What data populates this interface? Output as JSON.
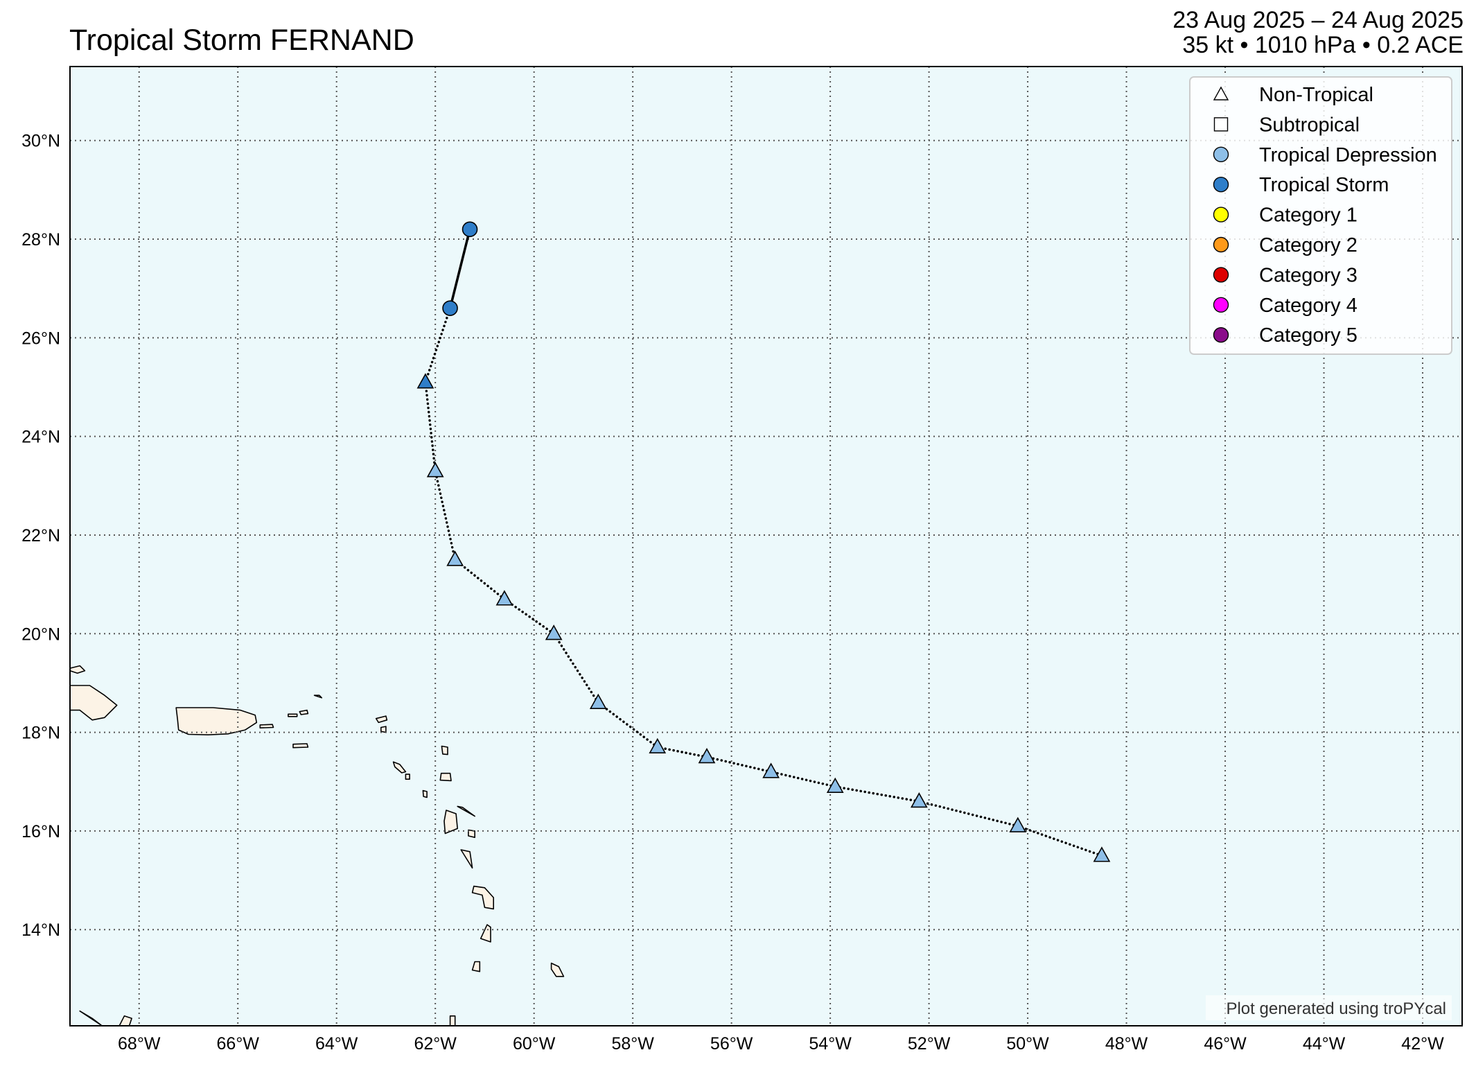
{
  "title": "Tropical Storm FERNAND",
  "date_range": "23 Aug 2025 – 24 Aug 2025",
  "stats_line": "35 kt • 1010 hPa • 0.2 ACE",
  "credit": "Plot generated using troPYcal",
  "colors": {
    "ocean": "#ecf9fb",
    "land": "#fcf3e6",
    "grid": "#555555",
    "Tropical Depression": "#8ebfe8",
    "Tropical Storm": "#2f7ec9",
    "Category 1": "#ffff00",
    "Category 2": "#ff9a1a",
    "Category 3": "#dd0000",
    "Category 4": "#ff00ff",
    "Category 5": "#8a0b8a"
  },
  "legend": [
    {
      "label": "Non-Tropical",
      "marker": "triangle",
      "color": "#ffffff"
    },
    {
      "label": "Subtropical",
      "marker": "square",
      "color": "#ffffff"
    },
    {
      "label": "Tropical Depression",
      "marker": "circle",
      "color": "#8ebfe8"
    },
    {
      "label": "Tropical Storm",
      "marker": "circle",
      "color": "#2f7ec9"
    },
    {
      "label": "Category 1",
      "marker": "circle",
      "color": "#ffff00"
    },
    {
      "label": "Category 2",
      "marker": "circle",
      "color": "#ff9a1a"
    },
    {
      "label": "Category 3",
      "marker": "circle",
      "color": "#dd0000"
    },
    {
      "label": "Category 4",
      "marker": "circle",
      "color": "#ff00ff"
    },
    {
      "label": "Category 5",
      "marker": "circle",
      "color": "#8a0b8a"
    }
  ],
  "lon_ticks": [
    "68°W",
    "66°W",
    "64°W",
    "62°W",
    "60°W",
    "58°W",
    "56°W",
    "54°W",
    "52°W",
    "50°W",
    "48°W",
    "46°W",
    "44°W",
    "42°W"
  ],
  "lat_ticks": [
    "14°N",
    "16°N",
    "18°N",
    "20°N",
    "22°N",
    "24°N",
    "26°N",
    "28°N",
    "30°N"
  ],
  "extent": {
    "lon": [
      -69.4,
      -41.2
    ],
    "lat": [
      12.05,
      31.5
    ]
  },
  "track": [
    {
      "lon": -48.5,
      "lat": 15.5,
      "type": "Non-Tropical",
      "intensity": "Tropical Depression"
    },
    {
      "lon": -50.2,
      "lat": 16.1,
      "type": "Non-Tropical",
      "intensity": "Tropical Depression"
    },
    {
      "lon": -52.2,
      "lat": 16.6,
      "type": "Non-Tropical",
      "intensity": "Tropical Depression"
    },
    {
      "lon": -53.9,
      "lat": 16.9,
      "type": "Non-Tropical",
      "intensity": "Tropical Depression"
    },
    {
      "lon": -55.2,
      "lat": 17.2,
      "type": "Non-Tropical",
      "intensity": "Tropical Depression"
    },
    {
      "lon": -56.5,
      "lat": 17.5,
      "type": "Non-Tropical",
      "intensity": "Tropical Depression"
    },
    {
      "lon": -57.5,
      "lat": 17.7,
      "type": "Non-Tropical",
      "intensity": "Tropical Depression"
    },
    {
      "lon": -58.7,
      "lat": 18.6,
      "type": "Non-Tropical",
      "intensity": "Tropical Depression"
    },
    {
      "lon": -59.6,
      "lat": 20.0,
      "type": "Non-Tropical",
      "intensity": "Tropical Depression"
    },
    {
      "lon": -60.6,
      "lat": 20.7,
      "type": "Non-Tropical",
      "intensity": "Tropical Depression"
    },
    {
      "lon": -61.6,
      "lat": 21.5,
      "type": "Non-Tropical",
      "intensity": "Tropical Depression"
    },
    {
      "lon": -62.0,
      "lat": 23.3,
      "type": "Non-Tropical",
      "intensity": "Tropical Depression"
    },
    {
      "lon": -62.2,
      "lat": 25.1,
      "type": "Non-Tropical",
      "intensity": "Tropical Storm"
    },
    {
      "lon": -61.7,
      "lat": 26.6,
      "type": "Tropical",
      "intensity": "Tropical Storm"
    },
    {
      "lon": -61.3,
      "lat": 28.2,
      "type": "Tropical",
      "intensity": "Tropical Storm"
    }
  ],
  "land": [
    {
      "name": "hispaniola",
      "points": [
        [
          -69.4,
          18.95
        ],
        [
          -69.0,
          18.95
        ],
        [
          -68.7,
          18.75
        ],
        [
          -68.45,
          18.55
        ],
        [
          -68.7,
          18.3
        ],
        [
          -68.95,
          18.25
        ],
        [
          -69.2,
          18.45
        ],
        [
          -69.4,
          18.45
        ]
      ]
    },
    {
      "name": "hispaniola-north-islet",
      "points": [
        [
          -69.4,
          19.3
        ],
        [
          -69.2,
          19.35
        ],
        [
          -69.1,
          19.25
        ],
        [
          -69.25,
          19.2
        ],
        [
          -69.4,
          19.25
        ]
      ]
    },
    {
      "name": "puerto-rico",
      "points": [
        [
          -67.25,
          18.5
        ],
        [
          -66.5,
          18.5
        ],
        [
          -65.95,
          18.45
        ],
        [
          -65.65,
          18.35
        ],
        [
          -65.62,
          18.2
        ],
        [
          -65.85,
          18.05
        ],
        [
          -66.2,
          17.97
        ],
        [
          -66.6,
          17.95
        ],
        [
          -67.0,
          17.96
        ],
        [
          -67.2,
          18.05
        ],
        [
          -67.22,
          18.25
        ]
      ]
    },
    {
      "name": "vieques",
      "points": [
        [
          -65.55,
          18.15
        ],
        [
          -65.3,
          18.16
        ],
        [
          -65.28,
          18.1
        ],
        [
          -65.55,
          18.09
        ]
      ]
    },
    {
      "name": "virgin-islands",
      "points": [
        [
          -64.98,
          18.37
        ],
        [
          -64.8,
          18.37
        ],
        [
          -64.8,
          18.32
        ],
        [
          -64.98,
          18.32
        ]
      ]
    },
    {
      "name": "virgin-islands-2",
      "points": [
        [
          -64.75,
          18.42
        ],
        [
          -64.6,
          18.45
        ],
        [
          -64.58,
          18.38
        ],
        [
          -64.72,
          18.36
        ]
      ]
    },
    {
      "name": "anegada",
      "points": [
        [
          -64.45,
          18.75
        ],
        [
          -64.35,
          18.75
        ],
        [
          -64.3,
          18.7
        ],
        0
      ]
    },
    {
      "name": "st-croix",
      "points": [
        [
          -64.88,
          17.76
        ],
        [
          -64.6,
          17.77
        ],
        [
          -64.58,
          17.7
        ],
        [
          -64.88,
          17.69
        ]
      ]
    },
    {
      "name": "anguilla",
      "points": [
        [
          -63.2,
          18.28
        ],
        [
          -63.0,
          18.33
        ],
        [
          -62.98,
          18.25
        ],
        [
          -63.15,
          18.2
        ]
      ]
    },
    {
      "name": "st-martin",
      "points": [
        [
          -63.1,
          18.1
        ],
        [
          -63.0,
          18.12
        ],
        [
          -63.0,
          18.0
        ],
        [
          -63.1,
          18.02
        ]
      ]
    },
    {
      "name": "st-kitts",
      "points": [
        [
          -62.85,
          17.4
        ],
        [
          -62.72,
          17.35
        ],
        [
          -62.6,
          17.2
        ],
        [
          -62.68,
          17.18
        ],
        [
          -62.82,
          17.3
        ]
      ]
    },
    {
      "name": "nevis",
      "points": [
        [
          -62.6,
          17.15
        ],
        [
          -62.52,
          17.15
        ],
        [
          -62.52,
          17.05
        ],
        [
          -62.6,
          17.05
        ]
      ]
    },
    {
      "name": "antigua",
      "points": [
        [
          -61.88,
          17.17
        ],
        [
          -61.7,
          17.17
        ],
        [
          -61.68,
          17.02
        ],
        [
          -61.9,
          17.03
        ]
      ]
    },
    {
      "name": "barbuda",
      "points": [
        [
          -61.87,
          17.72
        ],
        [
          -61.75,
          17.7
        ],
        [
          -61.75,
          17.55
        ],
        [
          -61.85,
          17.56
        ]
      ]
    },
    {
      "name": "montserrat",
      "points": [
        [
          -62.25,
          16.82
        ],
        [
          -62.17,
          16.8
        ],
        [
          -62.17,
          16.68
        ],
        [
          -62.24,
          16.7
        ]
      ]
    },
    {
      "name": "guadeloupe-west",
      "points": [
        [
          -61.78,
          16.42
        ],
        [
          -61.58,
          16.35
        ],
        [
          -61.55,
          16.05
        ],
        [
          -61.8,
          15.95
        ],
        [
          -61.82,
          16.2
        ]
      ]
    },
    {
      "name": "guadeloupe-east",
      "points": [
        [
          -61.55,
          16.5
        ],
        [
          -61.45,
          16.48
        ],
        [
          -61.2,
          16.3
        ],
        0
      ]
    },
    {
      "name": "marie-galante",
      "points": [
        [
          -61.33,
          16.02
        ],
        [
          -61.2,
          16.0
        ],
        [
          -61.2,
          15.87
        ],
        [
          -61.33,
          15.9
        ]
      ]
    },
    {
      "name": "dominica",
      "points": [
        [
          -61.48,
          15.62
        ],
        [
          -61.3,
          15.58
        ],
        [
          -61.25,
          15.25
        ],
        0
      ]
    },
    {
      "name": "martinique",
      "points": [
        [
          -61.22,
          14.88
        ],
        [
          -61.0,
          14.85
        ],
        [
          -60.82,
          14.65
        ],
        [
          -60.82,
          14.42
        ],
        [
          -61.0,
          14.45
        ],
        [
          -61.05,
          14.7
        ],
        [
          -61.25,
          14.75
        ]
      ]
    },
    {
      "name": "st-lucia",
      "points": [
        [
          -60.95,
          14.1
        ],
        [
          -60.88,
          14.05
        ],
        [
          -60.88,
          13.75
        ],
        [
          -61.08,
          13.82
        ]
      ]
    },
    {
      "name": "st-vincent",
      "points": [
        [
          -61.2,
          13.35
        ],
        [
          -61.1,
          13.35
        ],
        [
          -61.1,
          13.15
        ],
        [
          -61.25,
          13.18
        ]
      ]
    },
    {
      "name": "barbados",
      "points": [
        [
          -59.65,
          13.32
        ],
        [
          -59.5,
          13.25
        ],
        [
          -59.4,
          13.05
        ],
        [
          -59.55,
          13.05
        ],
        [
          -59.65,
          13.2
        ]
      ]
    },
    {
      "name": "grenada-islet",
      "points": [
        [
          -61.7,
          12.25
        ],
        [
          -61.6,
          12.25
        ],
        [
          -61.6,
          12.05
        ],
        [
          -61.7,
          12.05
        ]
      ]
    },
    {
      "name": "south-coast-1",
      "points": [
        [
          -69.2,
          12.35
        ],
        [
          -68.95,
          12.2
        ],
        [
          -68.75,
          12.05
        ],
        0
      ]
    },
    {
      "name": "south-coast-2",
      "points": [
        [
          -68.3,
          12.25
        ],
        [
          -68.15,
          12.2
        ],
        [
          -68.2,
          12.05
        ],
        [
          -68.4,
          12.05
        ]
      ]
    }
  ]
}
